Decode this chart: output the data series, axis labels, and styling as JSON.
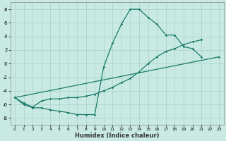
{
  "xlabel": "Humidex (Indice chaleur)",
  "xlim": [
    -0.5,
    23.5
  ],
  "ylim": [
    -9,
    9
  ],
  "xticks": [
    0,
    1,
    2,
    3,
    4,
    5,
    6,
    7,
    8,
    9,
    10,
    11,
    12,
    13,
    14,
    15,
    16,
    17,
    18,
    19,
    20,
    21,
    22,
    23
  ],
  "yticks": [
    -8,
    -6,
    -4,
    -2,
    0,
    2,
    4,
    6,
    8
  ],
  "bg_color": "#c8eae2",
  "grid_color": "#b0d4cc",
  "line_color": "#1a7a6a",
  "line1_x": [
    0,
    1,
    2,
    3,
    4,
    5,
    6,
    7,
    8,
    9,
    10,
    11,
    12,
    13,
    14,
    15,
    16,
    17,
    18,
    19,
    20,
    21
  ],
  "line1_y": [
    -5.0,
    -6.0,
    -6.5,
    -6.5,
    -6.8,
    -7.0,
    -7.2,
    -7.5,
    -7.5,
    -7.5,
    -0.5,
    3.0,
    5.8,
    8.0,
    8.0,
    6.8,
    5.8,
    4.2,
    4.2,
    2.5,
    2.2,
    1.0
  ],
  "line2_x": [
    0,
    1,
    2,
    3,
    4,
    5,
    6,
    7,
    8,
    9,
    10,
    11,
    12,
    13,
    14,
    15,
    16,
    17,
    18,
    19,
    20,
    21,
    22,
    23
  ],
  "line2_y": [
    -5.0,
    -5.8,
    -6.4,
    -5.5,
    -5.2,
    -5.2,
    -5.0,
    -5.0,
    -4.8,
    -4.5,
    -4.0,
    -3.5,
    -2.8,
    -2.2,
    -1.2,
    0.0,
    1.0,
    1.8,
    2.2,
    2.8,
    3.2,
    3.5,
    null,
    null
  ],
  "line3_x": [
    0,
    23
  ],
  "line3_y": [
    -5.0,
    1.0
  ]
}
